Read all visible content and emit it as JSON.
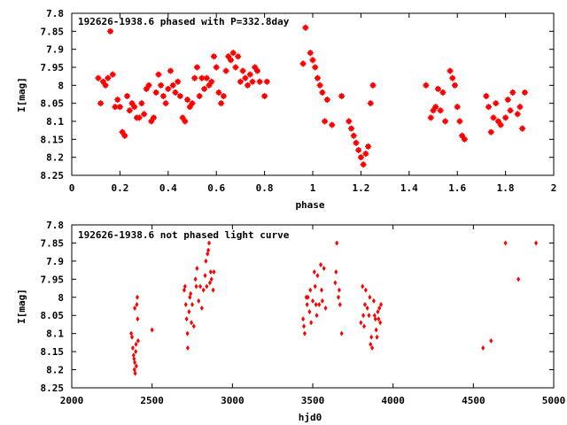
{
  "chart_data": [
    {
      "type": "scatter",
      "title": "192626-1938.6 phased with P=332.8day",
      "xlabel": "phase",
      "ylabel": "I[mag]",
      "xlim": [
        0,
        2
      ],
      "ylim": [
        7.8,
        8.25
      ],
      "y_inverted": true,
      "grid": false,
      "marker": "star",
      "color": "#ff0000",
      "xticks": [
        "0",
        "0.2",
        "0.4",
        "0.6",
        "0.8",
        "1",
        "1.2",
        "1.4",
        "1.6",
        "1.8",
        "2"
      ],
      "xtick_values": [
        0,
        0.2,
        0.4,
        0.6,
        0.8,
        1,
        1.2,
        1.4,
        1.6,
        1.8,
        2
      ],
      "yticks": [
        "7.8",
        "7.85",
        "7.9",
        "7.95",
        "8",
        "8.05",
        "8.1",
        "8.15",
        "8.2",
        "8.25"
      ],
      "ytick_values": [
        7.8,
        7.85,
        7.9,
        7.95,
        8,
        8.05,
        8.1,
        8.15,
        8.2,
        8.25
      ],
      "points": [
        [
          0.11,
          7.98
        ],
        [
          0.12,
          8.05
        ],
        [
          0.13,
          7.99
        ],
        [
          0.14,
          8.0
        ],
        [
          0.15,
          7.98
        ],
        [
          0.16,
          7.85
        ],
        [
          0.17,
          7.97
        ],
        [
          0.18,
          8.06
        ],
        [
          0.19,
          8.04
        ],
        [
          0.2,
          8.06
        ],
        [
          0.21,
          8.13
        ],
        [
          0.22,
          8.14
        ],
        [
          0.23,
          8.03
        ],
        [
          0.24,
          8.07
        ],
        [
          0.25,
          8.05
        ],
        [
          0.26,
          8.06
        ],
        [
          0.27,
          8.09
        ],
        [
          0.28,
          8.09
        ],
        [
          0.29,
          8.05
        ],
        [
          0.3,
          8.08
        ],
        [
          0.31,
          8.01
        ],
        [
          0.32,
          8.0
        ],
        [
          0.33,
          8.1
        ],
        [
          0.34,
          8.09
        ],
        [
          0.35,
          8.02
        ],
        [
          0.36,
          7.97
        ],
        [
          0.37,
          8.0
        ],
        [
          0.38,
          8.03
        ],
        [
          0.39,
          8.05
        ],
        [
          0.4,
          8.01
        ],
        [
          0.41,
          7.96
        ],
        [
          0.42,
          8.0
        ],
        [
          0.43,
          8.02
        ],
        [
          0.44,
          7.99
        ],
        [
          0.45,
          8.03
        ],
        [
          0.46,
          8.09
        ],
        [
          0.47,
          8.1
        ],
        [
          0.48,
          8.04
        ],
        [
          0.49,
          8.06
        ],
        [
          0.5,
          8.05
        ],
        [
          0.51,
          7.98
        ],
        [
          0.52,
          7.95
        ],
        [
          0.53,
          8.03
        ],
        [
          0.54,
          7.98
        ],
        [
          0.55,
          8.01
        ],
        [
          0.56,
          7.98
        ],
        [
          0.57,
          8.0
        ],
        [
          0.58,
          7.99
        ],
        [
          0.59,
          7.92
        ],
        [
          0.6,
          7.95
        ],
        [
          0.61,
          8.02
        ],
        [
          0.62,
          8.05
        ],
        [
          0.63,
          8.03
        ],
        [
          0.64,
          7.96
        ],
        [
          0.65,
          7.92
        ],
        [
          0.66,
          7.93
        ],
        [
          0.67,
          7.91
        ],
        [
          0.68,
          7.95
        ],
        [
          0.69,
          7.92
        ],
        [
          0.7,
          7.99
        ],
        [
          0.71,
          7.96
        ],
        [
          0.72,
          7.98
        ],
        [
          0.73,
          8.0
        ],
        [
          0.74,
          7.97
        ],
        [
          0.75,
          7.99
        ],
        [
          0.76,
          7.95
        ],
        [
          0.77,
          7.96
        ],
        [
          0.78,
          7.99
        ],
        [
          0.8,
          8.03
        ],
        [
          0.81,
          7.99
        ],
        [
          0.96,
          7.94
        ],
        [
          0.97,
          7.84
        ],
        [
          0.99,
          7.91
        ],
        [
          1.0,
          7.93
        ],
        [
          1.01,
          7.95
        ],
        [
          1.02,
          7.98
        ],
        [
          1.03,
          8.0
        ],
        [
          1.04,
          8.02
        ],
        [
          1.05,
          8.1
        ],
        [
          1.06,
          8.04
        ],
        [
          1.08,
          8.11
        ],
        [
          1.12,
          8.03
        ],
        [
          1.15,
          8.1
        ],
        [
          1.16,
          8.12
        ],
        [
          1.17,
          8.14
        ],
        [
          1.18,
          8.16
        ],
        [
          1.19,
          8.18
        ],
        [
          1.2,
          8.2
        ],
        [
          1.21,
          8.22
        ],
        [
          1.22,
          8.19
        ],
        [
          1.23,
          8.17
        ],
        [
          1.24,
          8.05
        ],
        [
          1.25,
          8.0
        ],
        [
          1.47,
          8.0
        ],
        [
          1.49,
          8.09
        ],
        [
          1.5,
          8.07
        ],
        [
          1.51,
          8.06
        ],
        [
          1.52,
          8.01
        ],
        [
          1.53,
          8.07
        ],
        [
          1.54,
          8.02
        ],
        [
          1.55,
          8.1
        ],
        [
          1.57,
          7.96
        ],
        [
          1.58,
          7.98
        ],
        [
          1.59,
          8.0
        ],
        [
          1.6,
          8.06
        ],
        [
          1.61,
          8.1
        ],
        [
          1.62,
          8.14
        ],
        [
          1.63,
          8.15
        ],
        [
          1.72,
          8.03
        ],
        [
          1.73,
          8.06
        ],
        [
          1.74,
          8.13
        ],
        [
          1.75,
          8.09
        ],
        [
          1.76,
          8.05
        ],
        [
          1.77,
          8.1
        ],
        [
          1.78,
          8.11
        ],
        [
          1.8,
          8.09
        ],
        [
          1.81,
          8.04
        ],
        [
          1.82,
          8.07
        ],
        [
          1.83,
          8.02
        ],
        [
          1.85,
          8.08
        ],
        [
          1.86,
          8.06
        ],
        [
          1.87,
          8.12
        ],
        [
          1.88,
          8.02
        ]
      ]
    },
    {
      "type": "scatter",
      "title": "192626-1938.6 not phased light curve",
      "xlabel": "hjd0",
      "ylabel": "I[mag]",
      "xlim": [
        2000,
        5000
      ],
      "ylim": [
        7.8,
        8.25
      ],
      "y_inverted": true,
      "grid": false,
      "marker": "diamond",
      "color": "#ff0000",
      "xticks": [
        "2000",
        "2500",
        "3000",
        "3500",
        "4000",
        "4500",
        "5000"
      ],
      "xtick_values": [
        2000,
        2500,
        3000,
        3500,
        4000,
        4500,
        5000
      ],
      "yticks": [
        "7.8",
        "7.85",
        "7.9",
        "7.95",
        "8",
        "8.05",
        "8.1",
        "8.15",
        "8.2",
        "8.25"
      ],
      "ytick_values": [
        7.8,
        7.85,
        7.9,
        7.95,
        8,
        8.05,
        8.1,
        8.15,
        8.2,
        8.25
      ],
      "points": [
        [
          2370,
          8.1
        ],
        [
          2375,
          8.11
        ],
        [
          2380,
          8.14
        ],
        [
          2385,
          8.16
        ],
        [
          2388,
          8.17
        ],
        [
          2390,
          8.2
        ],
        [
          2392,
          8.18
        ],
        [
          2395,
          8.21
        ],
        [
          2398,
          8.15
        ],
        [
          2400,
          8.13
        ],
        [
          2402,
          8.19
        ],
        [
          2405,
          8.02
        ],
        [
          2408,
          8.0
        ],
        [
          2410,
          8.06
        ],
        [
          2413,
          8.12
        ],
        [
          2392,
          8.03
        ],
        [
          2500,
          8.09
        ],
        [
          2700,
          7.98
        ],
        [
          2705,
          7.97
        ],
        [
          2710,
          8.02
        ],
        [
          2715,
          8.06
        ],
        [
          2720,
          8.1
        ],
        [
          2722,
          8.14
        ],
        [
          2730,
          8.04
        ],
        [
          2735,
          8.0
        ],
        [
          2740,
          7.99
        ],
        [
          2745,
          8.07
        ],
        [
          2750,
          8.02
        ],
        [
          2760,
          8.08
        ],
        [
          2770,
          7.95
        ],
        [
          2775,
          7.97
        ],
        [
          2780,
          7.92
        ],
        [
          2790,
          8.01
        ],
        [
          2800,
          7.97
        ],
        [
          2810,
          8.03
        ],
        [
          2820,
          7.98
        ],
        [
          2830,
          7.94
        ],
        [
          2835,
          7.9
        ],
        [
          2840,
          7.97
        ],
        [
          2845,
          7.88
        ],
        [
          2850,
          7.87
        ],
        [
          2855,
          7.85
        ],
        [
          2860,
          7.96
        ],
        [
          2865,
          7.93
        ],
        [
          2870,
          7.95
        ],
        [
          2880,
          7.98
        ],
        [
          2885,
          7.93
        ],
        [
          3440,
          8.06
        ],
        [
          3445,
          8.08
        ],
        [
          3450,
          8.1
        ],
        [
          3460,
          8.0
        ],
        [
          3465,
          8.02
        ],
        [
          3470,
          8.0
        ],
        [
          3480,
          8.04
        ],
        [
          3485,
          7.98
        ],
        [
          3490,
          8.07
        ],
        [
          3500,
          8.01
        ],
        [
          3510,
          7.93
        ],
        [
          3515,
          7.97
        ],
        [
          3520,
          8.02
        ],
        [
          3525,
          8.05
        ],
        [
          3530,
          7.94
        ],
        [
          3540,
          8.02
        ],
        [
          3550,
          7.91
        ],
        [
          3555,
          7.98
        ],
        [
          3560,
          8.01
        ],
        [
          3570,
          7.92
        ],
        [
          3580,
          8.03
        ],
        [
          3640,
          7.96
        ],
        [
          3645,
          7.93
        ],
        [
          3650,
          7.85
        ],
        [
          3660,
          8.0
        ],
        [
          3665,
          7.98
        ],
        [
          3670,
          8.02
        ],
        [
          3680,
          8.1
        ],
        [
          3800,
          8.07
        ],
        [
          3810,
          7.97
        ],
        [
          3815,
          8.05
        ],
        [
          3820,
          8.08
        ],
        [
          3825,
          8.02
        ],
        [
          3830,
          7.98
        ],
        [
          3840,
          8.03
        ],
        [
          3850,
          8.05
        ],
        [
          3855,
          8.0
        ],
        [
          3860,
          8.13
        ],
        [
          3865,
          8.11
        ],
        [
          3870,
          8.14
        ],
        [
          3880,
          8.01
        ],
        [
          3885,
          8.05
        ],
        [
          3890,
          8.06
        ],
        [
          3895,
          8.09
        ],
        [
          3900,
          8.11
        ],
        [
          3905,
          8.04
        ],
        [
          3910,
          8.06
        ],
        [
          3915,
          8.03
        ],
        [
          3920,
          8.07
        ],
        [
          3925,
          8.02
        ],
        [
          4560,
          8.14
        ],
        [
          4610,
          8.12
        ],
        [
          4700,
          7.85
        ],
        [
          4780,
          7.95
        ],
        [
          4890,
          7.85
        ]
      ]
    }
  ]
}
